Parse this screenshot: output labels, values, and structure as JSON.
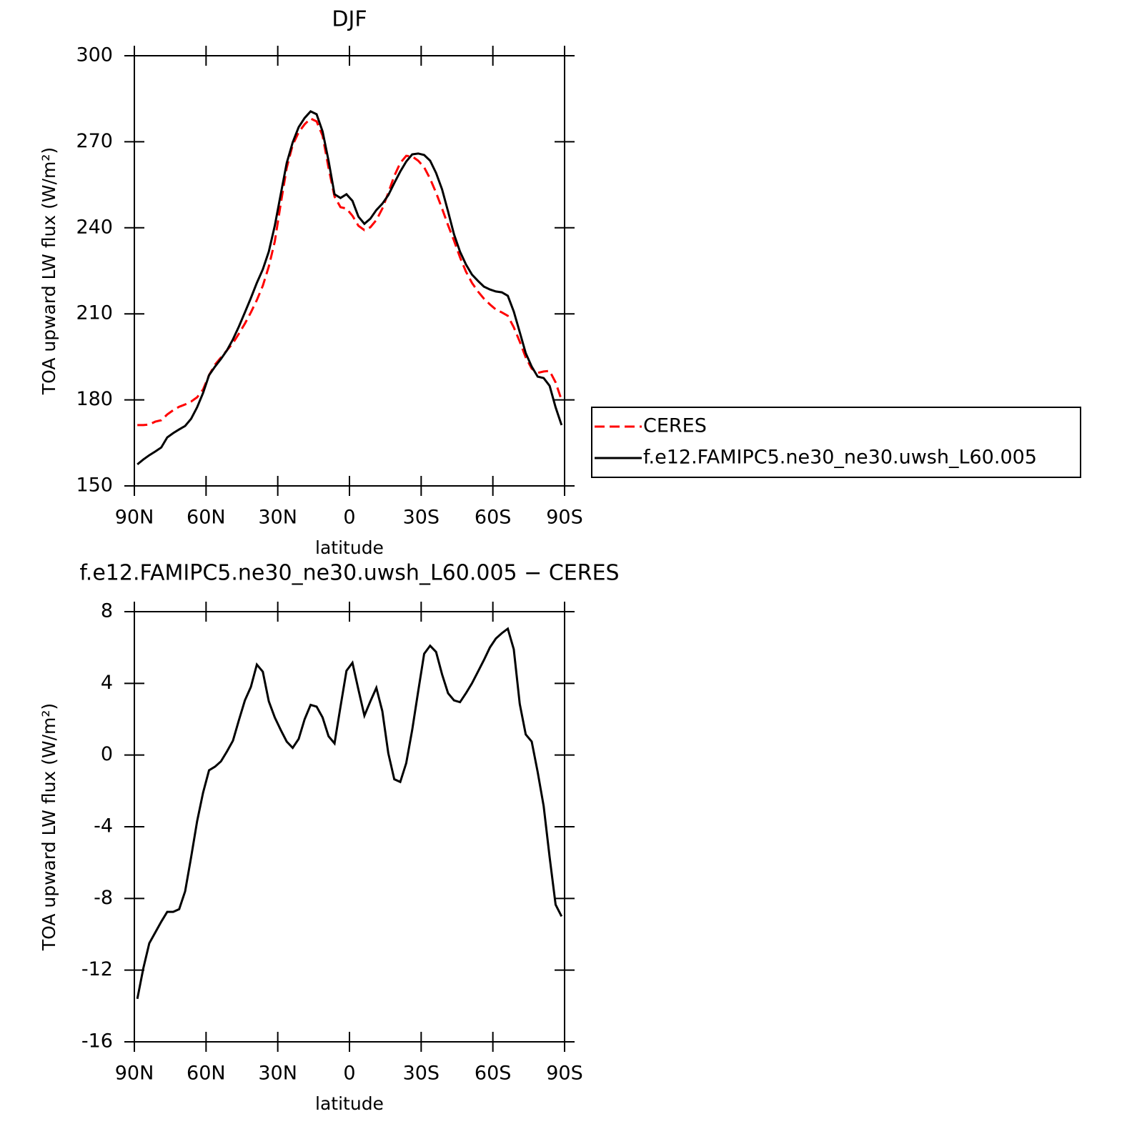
{
  "chart_data": [
    {
      "type": "line",
      "title": "DJF",
      "xlabel": "latitude",
      "ylabel": "TOA upward LW flux (W/m²)",
      "x": [
        88.75,
        86.25,
        83.75,
        81.25,
        78.75,
        76.25,
        73.75,
        71.25,
        68.75,
        66.25,
        63.75,
        61.25,
        58.75,
        56.25,
        53.75,
        51.25,
        48.75,
        46.25,
        43.75,
        41.25,
        38.75,
        36.25,
        33.75,
        31.25,
        28.75,
        26.25,
        23.75,
        21.25,
        18.75,
        16.25,
        13.75,
        11.25,
        8.75,
        6.25,
        3.75,
        1.25,
        -1.25,
        -3.75,
        -6.25,
        -8.75,
        -11.25,
        -13.75,
        -16.25,
        -18.75,
        -21.25,
        -23.75,
        -26.25,
        -28.75,
        -31.25,
        -33.75,
        -36.25,
        -38.75,
        -41.25,
        -43.75,
        -46.25,
        -48.75,
        -51.25,
        -53.75,
        -56.25,
        -58.75,
        -61.25,
        -63.75,
        -66.25,
        -68.75,
        -71.25,
        -73.75,
        -76.25,
        -78.75,
        -81.25,
        -83.75,
        -86.25,
        -88.75
      ],
      "xlim": [
        90,
        -90
      ],
      "xticks": [
        {
          "value": 90,
          "label": "90N"
        },
        {
          "value": 60,
          "label": "60N"
        },
        {
          "value": 30,
          "label": "30N"
        },
        0,
        {
          "value": -30,
          "label": "30S"
        },
        {
          "value": -60,
          "label": "60S"
        },
        {
          "value": -90,
          "label": "90S"
        }
      ],
      "ylim": [
        150,
        300
      ],
      "yticks": [
        150,
        180,
        210,
        240,
        270,
        300
      ],
      "legend": "right",
      "series": [
        {
          "name": "CERES",
          "color": "#ff0000",
          "dashed": true,
          "values": [
            171.2,
            171.2,
            171.4,
            172.4,
            172.9,
            174.9,
            176.4,
            177.6,
            178.4,
            179.4,
            180.9,
            183.6,
            188.6,
            192.3,
            194.8,
            197.3,
            199.8,
            203.1,
            206.6,
            210.5,
            214.8,
            219.8,
            226.5,
            235.2,
            248.4,
            260.9,
            268.9,
            273.3,
            276.1,
            278.1,
            277.1,
            272.1,
            260.9,
            250.9,
            247.2,
            246.7,
            244.2,
            240.7,
            239.2,
            240.2,
            242.7,
            246.7,
            252.2,
            258.1,
            262.6,
            265.1,
            264.9,
            263.4,
            261.1,
            257.1,
            252.2,
            246.7,
            240.9,
            235.5,
            229.7,
            224.7,
            220.8,
            217.8,
            215.3,
            213.3,
            211.5,
            210.5,
            209.3,
            205.3,
            200.3,
            194.8,
            190.9,
            189.4,
            189.9,
            190.1,
            186.1,
            179.9
          ]
        },
        {
          "name": "f.e12.FAMIPC5.ne30_ne30.uwsh_L60.005",
          "color": "#000000",
          "dashed": false,
          "values": [
            157.5,
            159.2,
            160.7,
            162.0,
            163.4,
            166.9,
            168.4,
            169.7,
            170.9,
            173.4,
            177.4,
            182.4,
            188.6,
            191.6,
            194.3,
            197.3,
            201.1,
            205.6,
            210.5,
            215.5,
            220.8,
            225.5,
            231.7,
            240.7,
            251.7,
            262.6,
            269.8,
            275.1,
            278.3,
            280.6,
            279.6,
            273.6,
            263.4,
            251.7,
            250.4,
            251.7,
            249.4,
            243.9,
            241.4,
            243.2,
            246.2,
            248.4,
            251.4,
            255.6,
            259.6,
            263.1,
            265.6,
            265.9,
            265.4,
            263.4,
            259.1,
            253.4,
            245.7,
            237.7,
            231.7,
            227.2,
            223.7,
            221.5,
            219.5,
            218.5,
            217.8,
            217.5,
            216.3,
            210.8,
            203.6,
            196.3,
            191.6,
            188.1,
            187.6,
            184.9,
            177.4,
            171.2
          ]
        }
      ]
    },
    {
      "type": "line",
      "title": "f.e12.FAMIPC5.ne30_ne30.uwsh_L60.005 − CERES",
      "xlabel": "latitude",
      "ylabel": "TOA upward LW flux (W/m²)",
      "x": [
        88.75,
        86.25,
        83.75,
        81.25,
        78.75,
        76.25,
        73.75,
        71.25,
        68.75,
        66.25,
        63.75,
        61.25,
        58.75,
        56.25,
        53.75,
        51.25,
        48.75,
        46.25,
        43.75,
        41.25,
        38.75,
        36.25,
        33.75,
        31.25,
        28.75,
        26.25,
        23.75,
        21.25,
        18.75,
        16.25,
        13.75,
        11.25,
        8.75,
        6.25,
        3.75,
        1.25,
        -1.25,
        -3.75,
        -6.25,
        -8.75,
        -11.25,
        -13.75,
        -16.25,
        -18.75,
        -21.25,
        -23.75,
        -26.25,
        -28.75,
        -31.25,
        -33.75,
        -36.25,
        -38.75,
        -41.25,
        -43.75,
        -46.25,
        -48.75,
        -51.25,
        -53.75,
        -56.25,
        -58.75,
        -61.25,
        -63.75,
        -66.25,
        -68.75,
        -71.25,
        -73.75,
        -76.25,
        -78.75,
        -81.25,
        -83.75,
        -86.25,
        -88.75
      ],
      "xlim": [
        90,
        -90
      ],
      "xticks": [
        {
          "value": 90,
          "label": "90N"
        },
        {
          "value": 60,
          "label": "60N"
        },
        {
          "value": 30,
          "label": "30N"
        },
        0,
        {
          "value": -30,
          "label": "30S"
        },
        {
          "value": -60,
          "label": "60S"
        },
        {
          "value": -90,
          "label": "90S"
        }
      ],
      "ylim": [
        -16,
        8
      ],
      "yticks": [
        -16,
        -12,
        -8,
        -4,
        0,
        4,
        8
      ],
      "color": "#000000",
      "values": [
        -13.6,
        -11.9,
        -10.5,
        -9.9,
        -9.3,
        -8.75,
        -8.75,
        -8.6,
        -7.6,
        -5.7,
        -3.7,
        -2.1,
        -0.85,
        -0.65,
        -0.35,
        0.2,
        0.8,
        1.95,
        3.05,
        3.8,
        5.05,
        4.65,
        3.0,
        2.1,
        1.4,
        0.75,
        0.4,
        0.9,
        2.0,
        2.8,
        2.7,
        2.1,
        1.05,
        0.65,
        2.7,
        4.7,
        5.15,
        3.65,
        2.2,
        3.0,
        3.75,
        2.45,
        0.1,
        -1.35,
        -1.5,
        -0.45,
        1.4,
        3.55,
        5.65,
        6.1,
        5.75,
        4.5,
        3.45,
        3.05,
        2.95,
        3.45,
        4.0,
        4.65,
        5.3,
        6.0,
        6.5,
        6.8,
        7.05,
        5.9,
        2.85,
        1.15,
        0.75,
        -0.95,
        -2.85,
        -5.7,
        -8.35,
        -9.0
      ]
    }
  ]
}
